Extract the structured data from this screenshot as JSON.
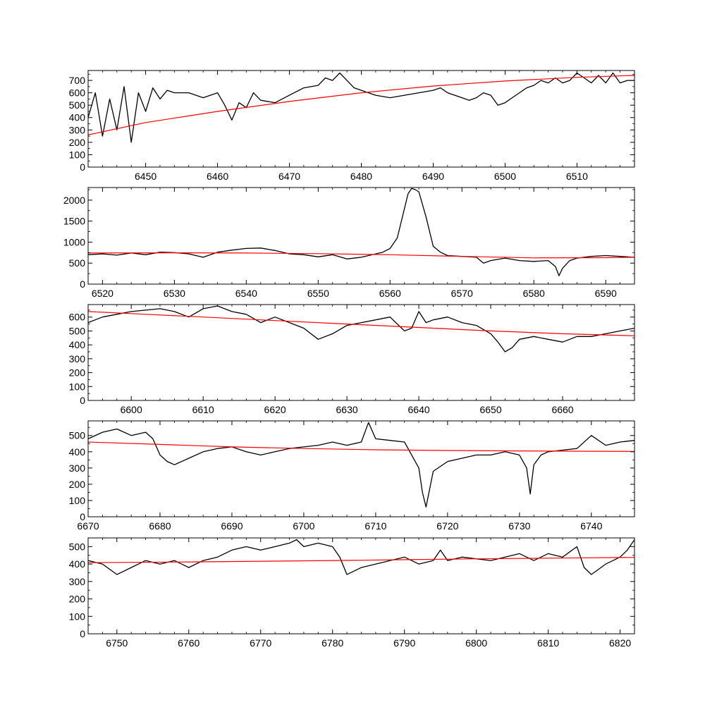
{
  "chart_data": [
    {
      "type": "line",
      "xlim": [
        6442,
        6518
      ],
      "ylim": [
        0,
        780
      ],
      "xticks": [
        6450,
        6460,
        6470,
        6480,
        6490,
        6500,
        6510
      ],
      "yticks": [
        0,
        100,
        200,
        300,
        400,
        500,
        600,
        700
      ],
      "series": [
        {
          "role": "spectrum",
          "color": "#000000",
          "x": [
            6442,
            6443,
            6444,
            6445,
            6446,
            6447,
            6448,
            6449,
            6450,
            6451,
            6452,
            6453,
            6454,
            6456,
            6458,
            6460,
            6461,
            6462,
            6463,
            6464,
            6465,
            6466,
            6468,
            6470,
            6472,
            6474,
            6475,
            6476,
            6477,
            6478,
            6479,
            6480,
            6481,
            6482,
            6484,
            6486,
            6488,
            6490,
            6491,
            6492,
            6493,
            6494,
            6495,
            6496,
            6497,
            6498,
            6499,
            6500,
            6501,
            6502,
            6503,
            6504,
            6505,
            6506,
            6507,
            6508,
            6509,
            6510,
            6511,
            6512,
            6513,
            6514,
            6515,
            6516,
            6517,
            6518
          ],
          "y": [
            400,
            600,
            250,
            550,
            300,
            650,
            200,
            600,
            450,
            640,
            550,
            620,
            600,
            600,
            560,
            600,
            500,
            380,
            520,
            480,
            600,
            540,
            520,
            580,
            640,
            660,
            720,
            700,
            760,
            700,
            640,
            620,
            600,
            580,
            560,
            580,
            600,
            620,
            640,
            600,
            580,
            560,
            540,
            560,
            600,
            580,
            500,
            520,
            560,
            600,
            640,
            660,
            700,
            680,
            720,
            680,
            700,
            760,
            720,
            680,
            740,
            680,
            760,
            680,
            700,
            700
          ]
        },
        {
          "role": "continuum fit",
          "color": "#ff0000",
          "x": [
            6442,
            6450,
            6460,
            6470,
            6480,
            6490,
            6500,
            6510,
            6518
          ],
          "y": [
            260,
            360,
            450,
            530,
            600,
            655,
            695,
            725,
            740
          ]
        }
      ]
    },
    {
      "type": "line",
      "xlim": [
        6518,
        6594
      ],
      "ylim": [
        0,
        2300
      ],
      "xticks": [
        6520,
        6530,
        6540,
        6550,
        6560,
        6570,
        6580,
        6590
      ],
      "yticks": [
        0,
        500,
        1000,
        1500,
        2000
      ],
      "series": [
        {
          "role": "spectrum",
          "color": "#000000",
          "x": [
            6518,
            6520,
            6522,
            6524,
            6526,
            6528,
            6530,
            6532,
            6534,
            6536,
            6538,
            6540,
            6542,
            6544,
            6546,
            6548,
            6550,
            6552,
            6554,
            6556,
            6558,
            6559,
            6560,
            6561,
            6562,
            6562.5,
            6563,
            6563.5,
            6564,
            6565,
            6566,
            6567,
            6568,
            6570,
            6572,
            6573,
            6574,
            6576,
            6578,
            6580,
            6582,
            6583,
            6583.5,
            6584,
            6585,
            6586,
            6588,
            6590,
            6592,
            6594
          ],
          "y": [
            700,
            720,
            690,
            740,
            700,
            760,
            750,
            720,
            640,
            760,
            810,
            850,
            860,
            800,
            720,
            700,
            650,
            700,
            600,
            640,
            720,
            760,
            850,
            1100,
            1800,
            2150,
            2280,
            2250,
            2200,
            1600,
            900,
            760,
            680,
            660,
            640,
            500,
            560,
            620,
            560,
            540,
            560,
            420,
            200,
            380,
            560,
            620,
            660,
            680,
            660,
            640
          ]
        },
        {
          "role": "continuum fit",
          "color": "#ff0000",
          "x": [
            6518,
            6530,
            6540,
            6550,
            6560,
            6570,
            6580,
            6590,
            6594
          ],
          "y": [
            740,
            745,
            740,
            725,
            700,
            660,
            625,
            630,
            640
          ]
        }
      ]
    },
    {
      "type": "line",
      "xlim": [
        6594,
        6670
      ],
      "ylim": [
        0,
        690
      ],
      "xticks": [
        6600,
        6610,
        6620,
        6630,
        6640,
        6650,
        6660
      ],
      "yticks": [
        0,
        100,
        200,
        300,
        400,
        500,
        600
      ],
      "series": [
        {
          "role": "spectrum",
          "color": "#000000",
          "x": [
            6594,
            6596,
            6598,
            6600,
            6602,
            6604,
            6606,
            6608,
            6610,
            6612,
            6614,
            6616,
            6618,
            6620,
            6622,
            6624,
            6626,
            6628,
            6630,
            6632,
            6634,
            6636,
            6638,
            6639,
            6640,
            6641,
            6642,
            6644,
            6646,
            6648,
            6650,
            6651,
            6652,
            6653,
            6654,
            6656,
            6658,
            6660,
            6662,
            6664,
            6666,
            6668,
            6670
          ],
          "y": [
            560,
            600,
            620,
            640,
            650,
            660,
            640,
            600,
            660,
            680,
            640,
            620,
            560,
            600,
            560,
            520,
            440,
            480,
            540,
            560,
            580,
            600,
            500,
            520,
            640,
            560,
            580,
            600,
            560,
            540,
            480,
            420,
            350,
            380,
            440,
            460,
            440,
            420,
            460,
            460,
            480,
            500,
            520
          ]
        },
        {
          "role": "continuum fit",
          "color": "#ff0000",
          "x": [
            6594,
            6600,
            6610,
            6620,
            6630,
            6640,
            6650,
            6660,
            6670
          ],
          "y": [
            640,
            625,
            600,
            575,
            550,
            525,
            500,
            480,
            465
          ]
        }
      ]
    },
    {
      "type": "line",
      "xlim": [
        6670,
        6746
      ],
      "ylim": [
        0,
        590
      ],
      "xticks": [
        6670,
        6680,
        6690,
        6700,
        6710,
        6720,
        6730,
        6740
      ],
      "yticks": [
        0,
        100,
        200,
        300,
        400,
        500
      ],
      "series": [
        {
          "role": "spectrum",
          "color": "#000000",
          "x": [
            6670,
            6672,
            6674,
            6676,
            6678,
            6679,
            6680,
            6681,
            6682,
            6684,
            6686,
            6688,
            6690,
            6692,
            6694,
            6696,
            6698,
            6700,
            6702,
            6704,
            6706,
            6708,
            6709,
            6710,
            6712,
            6714,
            6715,
            6716,
            6716.5,
            6717,
            6718,
            6720,
            6722,
            6724,
            6726,
            6728,
            6730,
            6731,
            6731.5,
            6732,
            6733,
            6734,
            6736,
            6738,
            6740,
            6742,
            6744,
            6746
          ],
          "y": [
            480,
            520,
            540,
            500,
            520,
            480,
            380,
            340,
            320,
            360,
            400,
            420,
            430,
            400,
            380,
            400,
            420,
            430,
            440,
            460,
            440,
            460,
            580,
            480,
            470,
            460,
            380,
            300,
            150,
            60,
            280,
            340,
            360,
            380,
            380,
            400,
            380,
            300,
            140,
            320,
            380,
            400,
            410,
            420,
            500,
            440,
            460,
            470
          ]
        },
        {
          "role": "continuum fit",
          "color": "#ff0000",
          "x": [
            6670,
            6680,
            6690,
            6700,
            6710,
            6720,
            6730,
            6740,
            6746
          ],
          "y": [
            460,
            445,
            430,
            420,
            412,
            408,
            405,
            403,
            402
          ]
        }
      ]
    },
    {
      "type": "line",
      "xlim": [
        6746,
        6822
      ],
      "ylim": [
        0,
        550
      ],
      "xticks": [
        6750,
        6760,
        6770,
        6780,
        6790,
        6800,
        6810,
        6820
      ],
      "yticks": [
        0,
        100,
        200,
        300,
        400,
        500
      ],
      "series": [
        {
          "role": "spectrum",
          "color": "#000000",
          "x": [
            6746,
            6748,
            6750,
            6752,
            6754,
            6756,
            6758,
            6760,
            6762,
            6764,
            6766,
            6768,
            6770,
            6772,
            6774,
            6775,
            6776,
            6778,
            6780,
            6781,
            6782,
            6784,
            6786,
            6788,
            6790,
            6792,
            6794,
            6795,
            6796,
            6798,
            6800,
            6802,
            6804,
            6806,
            6808,
            6810,
            6812,
            6814,
            6815,
            6816,
            6818,
            6820,
            6821,
            6822
          ],
          "y": [
            420,
            400,
            340,
            380,
            420,
            400,
            420,
            380,
            420,
            440,
            480,
            500,
            480,
            500,
            520,
            540,
            500,
            520,
            500,
            440,
            340,
            380,
            400,
            420,
            440,
            400,
            420,
            480,
            420,
            440,
            430,
            420,
            440,
            460,
            420,
            460,
            440,
            500,
            380,
            340,
            400,
            440,
            480,
            540
          ]
        },
        {
          "role": "continuum fit",
          "color": "#ff0000",
          "x": [
            6746,
            6760,
            6770,
            6780,
            6790,
            6800,
            6810,
            6822
          ],
          "y": [
            408,
            412,
            416,
            420,
            425,
            430,
            434,
            438
          ]
        }
      ]
    }
  ]
}
